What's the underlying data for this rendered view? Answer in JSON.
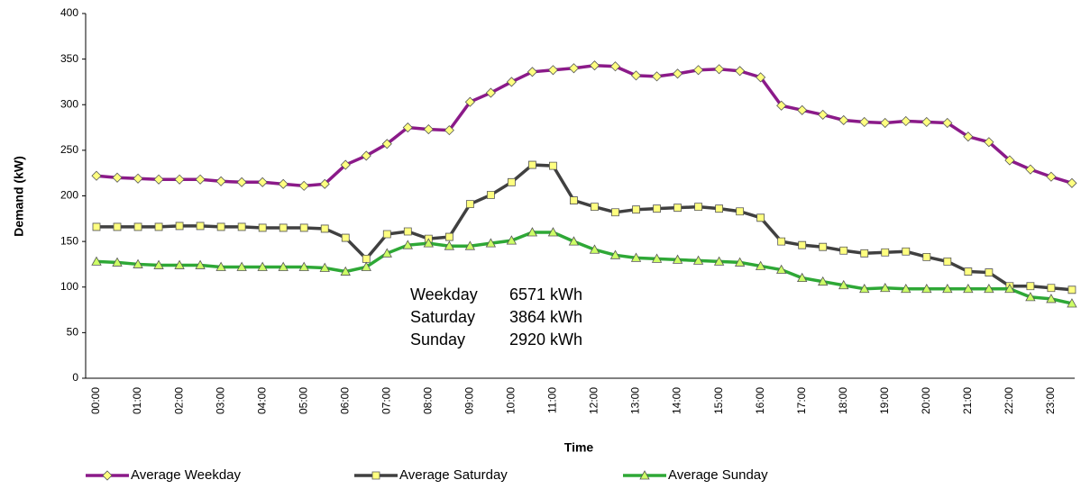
{
  "chart_data": {
    "type": "line",
    "x_label": "Time",
    "y_label": "Demand (kW)",
    "categories": [
      "00:00",
      null,
      "01:00",
      null,
      "02:00",
      null,
      "03:00",
      null,
      "04:00",
      null,
      "05:00",
      null,
      "06:00",
      null,
      "07:00",
      null,
      "08:00",
      null,
      "09:00",
      null,
      "10:00",
      null,
      "11:00",
      null,
      "12:00",
      null,
      "13:00",
      null,
      "14:00",
      null,
      "15:00",
      null,
      "16:00",
      null,
      "17:00",
      null,
      "18:00",
      null,
      "19:00",
      null,
      "20:00",
      null,
      "21:00",
      null,
      "22:00",
      null,
      "23:00",
      null
    ],
    "series": [
      {
        "name": "Average Weekday",
        "color": "#8b1a89",
        "marker": "diamond",
        "marker_color": "#ffff80",
        "values": [
          222,
          220,
          219,
          218,
          218,
          218,
          216,
          215,
          215,
          213,
          211,
          213,
          234,
          244,
          257,
          275,
          273,
          272,
          303,
          313,
          325,
          336,
          338,
          340,
          343,
          342,
          332,
          331,
          334,
          338,
          339,
          337,
          330,
          299,
          294,
          289,
          283,
          281,
          280,
          282,
          281,
          280,
          265,
          259,
          239,
          229,
          221,
          214
        ]
      },
      {
        "name": "Average Saturday",
        "color": "#404040",
        "marker": "square",
        "marker_color": "#ffff80",
        "values": [
          166,
          166,
          166,
          166,
          167,
          167,
          166,
          166,
          165,
          165,
          165,
          164,
          154,
          131,
          158,
          161,
          153,
          155,
          191,
          201,
          215,
          234,
          233,
          195,
          188,
          182,
          185,
          186,
          187,
          188,
          186,
          183,
          176,
          150,
          146,
          144,
          140,
          137,
          138,
          139,
          133,
          128,
          117,
          116,
          101,
          101,
          99,
          97
        ]
      },
      {
        "name": "Average Sunday",
        "color": "#2ea836",
        "marker": "triangle",
        "marker_color": "#ccff66",
        "values": [
          128,
          127,
          125,
          124,
          124,
          124,
          122,
          122,
          122,
          122,
          122,
          121,
          117,
          122,
          137,
          146,
          148,
          145,
          145,
          148,
          151,
          160,
          160,
          150,
          141,
          135,
          132,
          131,
          130,
          129,
          128,
          127,
          123,
          119,
          110,
          106,
          102,
          98,
          99,
          98,
          98,
          98,
          98,
          98,
          98,
          89,
          87,
          82
        ]
      }
    ],
    "ylim": [
      0,
      400
    ],
    "yticks": [
      0,
      50,
      100,
      150,
      200,
      250,
      300,
      350,
      400
    ],
    "grid": false,
    "legend": "bottom",
    "annotation": [
      [
        "Weekday",
        "6571 kWh"
      ],
      [
        "Saturday",
        "3864 kWh"
      ],
      [
        "Sunday",
        "2920 kWh"
      ]
    ]
  }
}
